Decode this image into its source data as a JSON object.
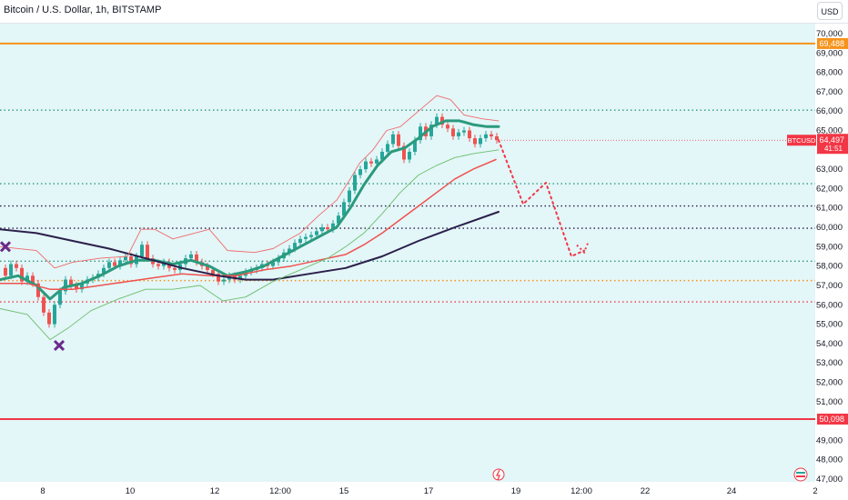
{
  "header": {
    "symbol_title": "Bitcoin / U.S. Dollar, 1h, BITSTAMP",
    "currency_button": "USD"
  },
  "price_badges": [
    {
      "label": "69,488",
      "color": "#f7931a",
      "price": 69488
    },
    {
      "label": "50,098",
      "color": "#f23645",
      "price": 50098
    }
  ],
  "current_price_badge": {
    "symbol": "BTCUSD",
    "price_label": "64,497",
    "countdown": "41:51",
    "color": "#f23645",
    "price": 64497
  },
  "colors": {
    "background": "#e3f6f8",
    "ema_fast": "#2b9a7d",
    "ema_mid": "#f0524f",
    "ema_slow": "#2a1f4a",
    "envelope_upper": "#f06b6b",
    "envelope_lower": "#6cbf6c",
    "candle_up": "#26a69a",
    "candle_down": "#ef5350",
    "projection": "#f23645"
  },
  "chart_data": {
    "type": "line",
    "symbol": "Bitcoin / U.S. Dollar",
    "timeframe": "1h",
    "exchange": "BITSTAMP",
    "x_tick_labels": [
      "8",
      "10",
      "12",
      "12:00",
      "15",
      "17",
      "19",
      "12:00",
      "22",
      "24",
      "2"
    ],
    "y_tick_labels": [
      "47,000",
      "48,000",
      "49,000",
      "51,000",
      "52,000",
      "53,000",
      "54,000",
      "55,000",
      "56,000",
      "57,000",
      "58,000",
      "59,000",
      "60,000",
      "61,000",
      "62,000",
      "63,000",
      "65,000",
      "66,000",
      "67,000",
      "68,000",
      "69,000",
      "70,000"
    ],
    "ylim": [
      46700,
      71000
    ],
    "horizontal_levels": [
      {
        "price": 69488,
        "style": "solid",
        "color": "#f7931a",
        "label": "69,488"
      },
      {
        "price": 66050,
        "style": "dotted",
        "color": "#2b9a7d"
      },
      {
        "price": 62250,
        "style": "dotted",
        "color": "#2b9a7d"
      },
      {
        "price": 61100,
        "style": "dotted",
        "color": "#2a1f4a"
      },
      {
        "price": 59950,
        "style": "dotted",
        "color": "#2a1f4a"
      },
      {
        "price": 58250,
        "style": "dotted",
        "color": "#2b9a7d"
      },
      {
        "price": 57250,
        "style": "dotted",
        "color": "#f7931a"
      },
      {
        "price": 56150,
        "style": "dotted",
        "color": "#f23645"
      },
      {
        "price": 50098,
        "style": "solid",
        "color": "#f23645",
        "label": "50,098"
      }
    ],
    "series": [
      {
        "role": "price",
        "points": [
          [
            0,
            57900
          ],
          [
            6,
            57500
          ],
          [
            12,
            58100
          ],
          [
            18,
            57900
          ],
          [
            24,
            57200
          ],
          [
            30,
            57500
          ],
          [
            36,
            57100
          ],
          [
            42,
            56400
          ],
          [
            48,
            55600
          ],
          [
            54,
            55000
          ],
          [
            60,
            56000
          ],
          [
            66,
            56700
          ],
          [
            72,
            57300
          ],
          [
            78,
            57000
          ],
          [
            84,
            56800
          ],
          [
            90,
            57100
          ],
          [
            96,
            57300
          ],
          [
            102,
            57400
          ],
          [
            108,
            57600
          ],
          [
            114,
            57900
          ],
          [
            120,
            58200
          ],
          [
            126,
            58000
          ],
          [
            132,
            58300
          ],
          [
            138,
            58500
          ],
          [
            144,
            58100
          ],
          [
            150,
            58500
          ],
          [
            156,
            59100
          ],
          [
            162,
            58400
          ],
          [
            168,
            58100
          ],
          [
            174,
            58000
          ],
          [
            180,
            58200
          ],
          [
            186,
            57900
          ],
          [
            192,
            57800
          ],
          [
            198,
            58100
          ],
          [
            204,
            58400
          ],
          [
            210,
            58600
          ],
          [
            216,
            58200
          ],
          [
            222,
            58000
          ],
          [
            228,
            57800
          ],
          [
            234,
            57600
          ],
          [
            240,
            57200
          ],
          [
            246,
            57300
          ],
          [
            252,
            57500
          ],
          [
            258,
            57300
          ],
          [
            264,
            57500
          ],
          [
            270,
            57700
          ],
          [
            276,
            57800
          ],
          [
            282,
            57900
          ],
          [
            288,
            58100
          ],
          [
            294,
            58000
          ],
          [
            300,
            58200
          ],
          [
            306,
            58400
          ],
          [
            312,
            58700
          ],
          [
            318,
            58900
          ],
          [
            324,
            59200
          ],
          [
            330,
            59400
          ],
          [
            336,
            59500
          ],
          [
            342,
            59600
          ],
          [
            348,
            59800
          ],
          [
            354,
            60000
          ],
          [
            360,
            59900
          ],
          [
            366,
            60200
          ],
          [
            372,
            60600
          ],
          [
            378,
            61300
          ],
          [
            384,
            61900
          ],
          [
            390,
            62700
          ],
          [
            396,
            63000
          ],
          [
            402,
            63400
          ],
          [
            408,
            63300
          ],
          [
            414,
            63500
          ],
          [
            420,
            63900
          ],
          [
            426,
            64300
          ],
          [
            432,
            64800
          ],
          [
            438,
            64200
          ],
          [
            444,
            63500
          ],
          [
            450,
            63900
          ],
          [
            456,
            64500
          ],
          [
            462,
            65200
          ],
          [
            468,
            64700
          ],
          [
            474,
            65300
          ],
          [
            480,
            65700
          ],
          [
            486,
            65300
          ],
          [
            492,
            65100
          ],
          [
            498,
            64700
          ],
          [
            504,
            64900
          ],
          [
            510,
            65000
          ],
          [
            516,
            64600
          ],
          [
            522,
            64300
          ],
          [
            528,
            64600
          ],
          [
            534,
            64800
          ],
          [
            540,
            64700
          ],
          [
            546,
            64500
          ]
        ]
      },
      {
        "role": "ema_fast",
        "points": [
          [
            0,
            57300
          ],
          [
            20,
            57500
          ],
          [
            40,
            57000
          ],
          [
            55,
            56300
          ],
          [
            70,
            56900
          ],
          [
            90,
            57100
          ],
          [
            110,
            57500
          ],
          [
            130,
            58000
          ],
          [
            150,
            58300
          ],
          [
            170,
            58300
          ],
          [
            190,
            58100
          ],
          [
            210,
            58300
          ],
          [
            230,
            58000
          ],
          [
            250,
            57500
          ],
          [
            270,
            57700
          ],
          [
            290,
            58000
          ],
          [
            310,
            58500
          ],
          [
            330,
            59000
          ],
          [
            350,
            59500
          ],
          [
            370,
            60000
          ],
          [
            385,
            61000
          ],
          [
            400,
            62200
          ],
          [
            415,
            63200
          ],
          [
            430,
            63900
          ],
          [
            445,
            64100
          ],
          [
            460,
            64600
          ],
          [
            475,
            65200
          ],
          [
            490,
            65500
          ],
          [
            505,
            65500
          ],
          [
            520,
            65300
          ],
          [
            535,
            65200
          ],
          [
            548,
            65200
          ]
        ]
      },
      {
        "role": "ema_mid",
        "points": [
          [
            0,
            57100
          ],
          [
            30,
            57100
          ],
          [
            55,
            56800
          ],
          [
            80,
            56800
          ],
          [
            110,
            57000
          ],
          [
            140,
            57200
          ],
          [
            170,
            57400
          ],
          [
            200,
            57600
          ],
          [
            230,
            57500
          ],
          [
            260,
            57500
          ],
          [
            290,
            57800
          ],
          [
            320,
            58000
          ],
          [
            350,
            58300
          ],
          [
            380,
            58600
          ],
          [
            400,
            59100
          ],
          [
            420,
            59700
          ],
          [
            440,
            60400
          ],
          [
            460,
            61100
          ],
          [
            480,
            61800
          ],
          [
            500,
            62500
          ],
          [
            520,
            63000
          ],
          [
            545,
            63500
          ]
        ]
      },
      {
        "role": "ema_slow",
        "points": [
          [
            0,
            59900
          ],
          [
            40,
            59700
          ],
          [
            80,
            59300
          ],
          [
            120,
            58900
          ],
          [
            160,
            58400
          ],
          [
            200,
            57900
          ],
          [
            240,
            57500
          ],
          [
            270,
            57300
          ],
          [
            300,
            57300
          ],
          [
            340,
            57600
          ],
          [
            380,
            57900
          ],
          [
            420,
            58500
          ],
          [
            460,
            59300
          ],
          [
            500,
            60000
          ],
          [
            548,
            60800
          ]
        ]
      },
      {
        "role": "envelope_upper",
        "points": [
          [
            0,
            59000
          ],
          [
            40,
            58800
          ],
          [
            60,
            57900
          ],
          [
            80,
            58200
          ],
          [
            110,
            58400
          ],
          [
            140,
            58500
          ],
          [
            155,
            59900
          ],
          [
            170,
            59900
          ],
          [
            190,
            59400
          ],
          [
            230,
            59900
          ],
          [
            250,
            58800
          ],
          [
            280,
            58700
          ],
          [
            300,
            58900
          ],
          [
            330,
            59700
          ],
          [
            350,
            60600
          ],
          [
            370,
            61400
          ],
          [
            385,
            62500
          ],
          [
            395,
            63300
          ],
          [
            410,
            64000
          ],
          [
            425,
            65000
          ],
          [
            440,
            65200
          ],
          [
            460,
            66000
          ],
          [
            480,
            66800
          ],
          [
            495,
            66600
          ],
          [
            510,
            65800
          ],
          [
            530,
            65600
          ],
          [
            548,
            65500
          ]
        ]
      },
      {
        "role": "envelope_lower",
        "points": [
          [
            0,
            55800
          ],
          [
            30,
            55500
          ],
          [
            55,
            54200
          ],
          [
            75,
            54800
          ],
          [
            100,
            55700
          ],
          [
            130,
            56300
          ],
          [
            160,
            56800
          ],
          [
            190,
            56800
          ],
          [
            220,
            57000
          ],
          [
            245,
            56200
          ],
          [
            270,
            56400
          ],
          [
            300,
            57200
          ],
          [
            330,
            57800
          ],
          [
            360,
            58400
          ],
          [
            380,
            59000
          ],
          [
            400,
            59700
          ],
          [
            420,
            60700
          ],
          [
            440,
            61800
          ],
          [
            460,
            62700
          ],
          [
            480,
            63200
          ],
          [
            500,
            63600
          ],
          [
            520,
            63800
          ],
          [
            548,
            64000
          ]
        ]
      },
      {
        "role": "projection",
        "points": [
          [
            548,
            64500
          ],
          [
            575,
            61200
          ],
          [
            600,
            62300
          ],
          [
            628,
            58500
          ],
          [
            642,
            58800
          ]
        ]
      }
    ],
    "markers": [
      {
        "type": "cross",
        "x": 6,
        "price": 59000,
        "color": "#6a2a8a"
      },
      {
        "type": "cross",
        "x": 65,
        "price": 53900,
        "color": "#6a2a8a"
      }
    ]
  }
}
